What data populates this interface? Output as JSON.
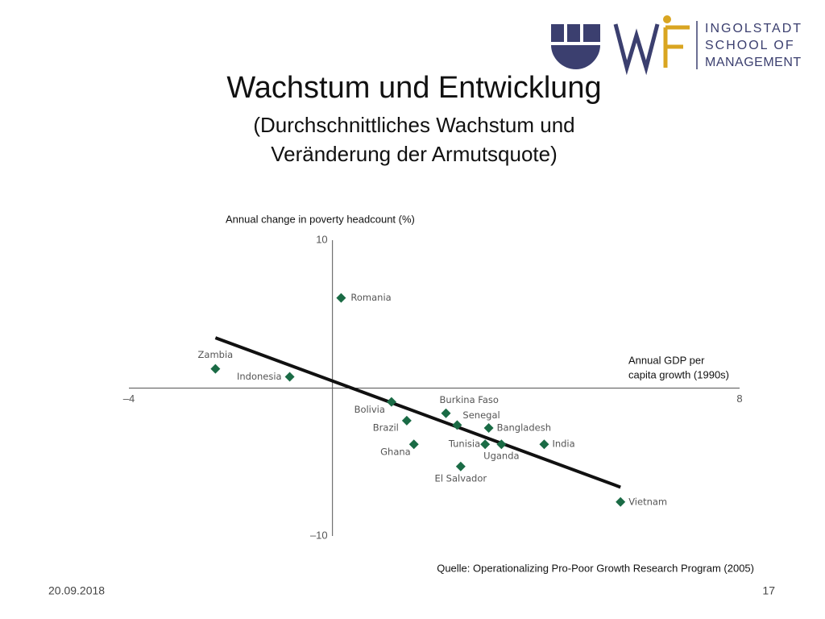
{
  "slide": {
    "title": "Wachstum und Entwicklung",
    "subtitle": [
      "(Durchschnittliches Wachstum und",
      "Veränderung der Armutsquote)"
    ],
    "logo_text": [
      "INGOLSTADT",
      "SCHOOL OF",
      "MANAGEMENT"
    ],
    "source": "Quelle: Operationalizing Pro-Poor Growth Research Program (2005)",
    "date": "20.09.2018",
    "page": "17"
  },
  "chart_data": {
    "type": "scatter",
    "y_label": "Annual change in poverty headcount (%)",
    "x_label": [
      "Annual GDP per",
      "capita growth (1990s)"
    ],
    "labels": [
      "Romania",
      "Zambia",
      "Indonesia",
      "Bolivia",
      "Brazil",
      "Ghana",
      "Burkina Faso",
      "Senegal",
      "Bangladesh",
      "Tunisia",
      "Uganda",
      "India",
      "El Salvador",
      "Vietnam"
    ],
    "x": [
      0.17,
      -2.3,
      -0.84,
      1.16,
      1.46,
      1.6,
      2.23,
      2.45,
      3.07,
      3.0,
      3.32,
      4.16,
      2.52,
      5.66
    ],
    "y": [
      6.1,
      1.3,
      0.76,
      -0.93,
      -2.2,
      -3.8,
      -1.7,
      -2.5,
      -2.7,
      -3.8,
      -3.8,
      -3.8,
      -5.3,
      -7.7
    ],
    "color": "#1a6b45",
    "trend_line": {
      "x": [
        -2.3,
        5.66
      ],
      "y": [
        3.4,
        -6.7
      ],
      "color": "#111111"
    },
    "xlim": [
      -4,
      8
    ],
    "ylim": [
      -10,
      10
    ],
    "xticks": [
      {
        "value": -4,
        "label": "–4"
      },
      8
    ],
    "yticks": [
      10,
      {
        "value": -10,
        "label": "–10"
      }
    ]
  }
}
